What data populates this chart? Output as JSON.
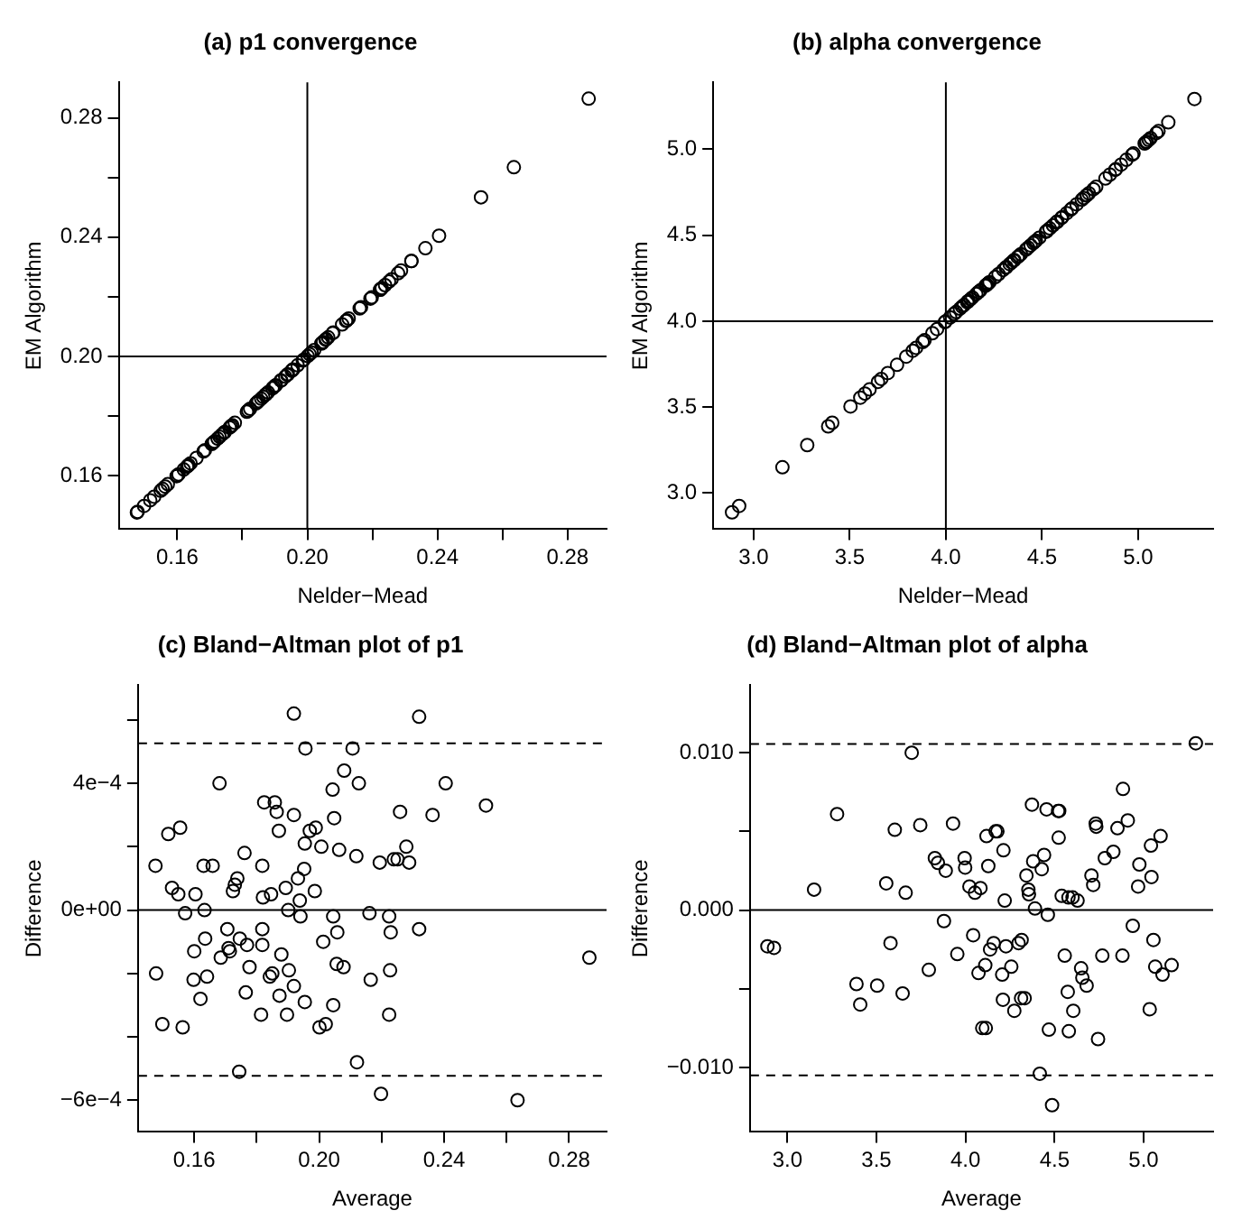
{
  "chart_data": [
    {
      "type": "scatter",
      "title": "(a) p1 convergence",
      "xlabel": "Nelder−Mead",
      "ylabel": "EM Algorithm",
      "color": "#000000",
      "marker": "circle",
      "x": [
        0.1476,
        0.1478,
        0.1498,
        0.1517,
        0.1529,
        0.1549,
        0.1555,
        0.1563,
        0.1571,
        0.16,
        0.1598,
        0.1604,
        0.162,
        0.1633,
        0.1635,
        0.1641,
        0.163,
        0.1659,
        0.1681,
        0.1685,
        0.1706,
        0.171,
        0.1714,
        0.1724,
        0.173,
        0.1738,
        0.1744,
        0.1746,
        0.1761,
        0.1765,
        0.1769,
        0.1777,
        0.1814,
        0.1818,
        0.1824,
        0.1846,
        0.1858,
        0.1864,
        0.1871,
        0.1873,
        0.1879,
        0.1842,
        0.185,
        0.1893,
        0.1897,
        0.1901,
        0.1903,
        0.1919,
        0.1919,
        0.1919,
        0.1932,
        0.1938,
        0.194,
        0.1952,
        0.1954,
        0.1954,
        0.1956,
        0.197,
        0.1989,
        0.1986,
        0.2007,
        0.2001,
        0.2013,
        0.2021,
        0.2043,
        0.2045,
        0.2045,
        0.2048,
        0.2058,
        0.2056,
        0.2064,
        0.2078,
        0.208,
        0.2107,
        0.2119,
        0.2121,
        0.2127,
        0.2161,
        0.2165,
        0.2194,
        0.2198,
        0.2224,
        0.2224,
        0.2227,
        0.2229,
        0.2239,
        0.2251,
        0.2259,
        0.2279,
        0.2288,
        0.232,
        0.232,
        0.2363,
        0.2405,
        0.2534,
        0.2635,
        0.2865
      ],
      "values": [
        0.1476,
        0.1478,
        0.1498,
        0.1517,
        0.1529,
        0.1549,
        0.1555,
        0.1563,
        0.1571,
        0.16,
        0.1598,
        0.1604,
        0.162,
        0.1633,
        0.1635,
        0.1641,
        0.163,
        0.1659,
        0.1681,
        0.1685,
        0.1706,
        0.171,
        0.1714,
        0.1724,
        0.173,
        0.1738,
        0.1744,
        0.1746,
        0.1761,
        0.1765,
        0.1769,
        0.1777,
        0.1814,
        0.1818,
        0.1824,
        0.1846,
        0.1858,
        0.1864,
        0.1871,
        0.1873,
        0.1879,
        0.1842,
        0.185,
        0.1893,
        0.1897,
        0.1901,
        0.1903,
        0.1919,
        0.1919,
        0.1919,
        0.1932,
        0.1938,
        0.194,
        0.1952,
        0.1954,
        0.1954,
        0.1956,
        0.197,
        0.1989,
        0.1986,
        0.2007,
        0.2001,
        0.2013,
        0.2021,
        0.2043,
        0.2045,
        0.2045,
        0.2048,
        0.2058,
        0.2056,
        0.2064,
        0.2078,
        0.208,
        0.2107,
        0.2119,
        0.2121,
        0.2127,
        0.2161,
        0.2165,
        0.2194,
        0.2198,
        0.2224,
        0.2224,
        0.2227,
        0.2229,
        0.2239,
        0.2251,
        0.2259,
        0.2279,
        0.2288,
        0.232,
        0.232,
        0.2363,
        0.2405,
        0.2534,
        0.2635,
        0.2865
      ],
      "xlim": [
        0.142,
        0.292
      ],
      "ylim": [
        0.142,
        0.292
      ],
      "xticks": [
        {
          "value": 0.16,
          "label": "0.16"
        },
        {
          "value": 0.18,
          "label": null
        },
        {
          "value": 0.2,
          "label": "0.20"
        },
        {
          "value": 0.22,
          "label": null
        },
        {
          "value": 0.24,
          "label": "0.24"
        },
        {
          "value": 0.26,
          "label": null
        },
        {
          "value": 0.28,
          "label": "0.28"
        }
      ],
      "yticks": [
        {
          "value": 0.16,
          "label": "0.16"
        },
        {
          "value": 0.18,
          "label": null
        },
        {
          "value": 0.2,
          "label": "0.20"
        },
        {
          "value": 0.22,
          "label": null
        },
        {
          "value": 0.24,
          "label": "0.24"
        },
        {
          "value": 0.26,
          "label": null
        },
        {
          "value": 0.28,
          "label": "0.28"
        }
      ],
      "ref_lines": [
        {
          "axis": "x",
          "value": 0.2
        },
        {
          "axis": "y",
          "value": 0.2
        }
      ]
    },
    {
      "type": "scatter",
      "title": "(b) alpha convergence",
      "xlabel": "Nelder−Mead",
      "ylabel": "EM Algorithm",
      "color": "#000000",
      "marker": "circle",
      "x": [
        2.888,
        2.925,
        3.15,
        3.279,
        3.388,
        3.409,
        3.504,
        3.555,
        3.579,
        3.603,
        3.647,
        3.664,
        3.698,
        3.746,
        3.794,
        3.828,
        3.845,
        3.879,
        3.889,
        3.93,
        3.954,
        3.995,
        3.998,
        4.022,
        4.043,
        4.053,
        4.073,
        4.084,
        4.094,
        4.114,
        4.111,
        4.118,
        4.128,
        4.138,
        4.158,
        4.169,
        4.179,
        4.206,
        4.213,
        4.22,
        4.227,
        4.21,
        4.257,
        4.274,
        4.298,
        4.315,
        4.312,
        4.332,
        4.342,
        4.353,
        4.356,
        4.373,
        4.38,
        4.39,
        4.417,
        4.428,
        4.441,
        4.455,
        4.462,
        4.468,
        4.486,
        4.52,
        4.526,
        4.523,
        4.54,
        4.557,
        4.578,
        4.574,
        4.58,
        4.605,
        4.601,
        4.629,
        4.649,
        4.656,
        4.68,
        4.707,
        4.717,
        4.731,
        4.734,
        4.744,
        4.768,
        4.782,
        4.83,
        4.853,
        4.881,
        4.884,
        4.911,
        4.939,
        4.969,
        4.976,
        5.034,
        5.044,
        5.041,
        5.055,
        5.065,
        5.095,
        5.106,
        5.157,
        5.293
      ],
      "values": [
        2.888,
        2.925,
        3.15,
        3.279,
        3.388,
        3.409,
        3.504,
        3.555,
        3.579,
        3.603,
        3.647,
        3.664,
        3.698,
        3.746,
        3.794,
        3.828,
        3.845,
        3.879,
        3.889,
        3.93,
        3.954,
        3.995,
        3.998,
        4.022,
        4.043,
        4.053,
        4.073,
        4.084,
        4.094,
        4.114,
        4.111,
        4.118,
        4.128,
        4.138,
        4.158,
        4.169,
        4.179,
        4.206,
        4.213,
        4.22,
        4.227,
        4.21,
        4.257,
        4.274,
        4.298,
        4.315,
        4.312,
        4.332,
        4.342,
        4.353,
        4.356,
        4.373,
        4.38,
        4.39,
        4.417,
        4.428,
        4.441,
        4.455,
        4.462,
        4.468,
        4.486,
        4.52,
        4.526,
        4.523,
        4.54,
        4.557,
        4.578,
        4.574,
        4.58,
        4.605,
        4.601,
        4.629,
        4.649,
        4.656,
        4.68,
        4.707,
        4.717,
        4.731,
        4.734,
        4.744,
        4.768,
        4.782,
        4.83,
        4.853,
        4.881,
        4.884,
        4.911,
        4.939,
        4.969,
        4.976,
        5.034,
        5.044,
        5.041,
        5.055,
        5.065,
        5.095,
        5.106,
        5.157,
        5.293
      ],
      "xlim": [
        2.79,
        5.39
      ],
      "ylim": [
        2.79,
        5.39
      ],
      "xticks": [
        {
          "value": 3,
          "label": "3.0"
        },
        {
          "value": 3.5,
          "label": "3.5"
        },
        {
          "value": 4,
          "label": "4.0"
        },
        {
          "value": 4.5,
          "label": "4.5"
        },
        {
          "value": 5,
          "label": "5.0"
        }
      ],
      "yticks": [
        {
          "value": 3,
          "label": "3.0"
        },
        {
          "value": 3.5,
          "label": "3.5"
        },
        {
          "value": 4,
          "label": "4.0"
        },
        {
          "value": 4.5,
          "label": "4.5"
        },
        {
          "value": 5,
          "label": "5.0"
        }
      ],
      "ref_lines": [
        {
          "axis": "x",
          "value": 4
        },
        {
          "axis": "y",
          "value": 4
        }
      ]
    },
    {
      "type": "scatter",
      "title": "(c) Bland−Altman plot of p1",
      "xlabel": "Average",
      "ylabel": "Difference",
      "color": "#000000",
      "marker": "circle",
      "x": [
        0.1476,
        0.1478,
        0.1498,
        0.1517,
        0.1529,
        0.1549,
        0.1555,
        0.1563,
        0.1571,
        0.16,
        0.1598,
        0.1604,
        0.162,
        0.1633,
        0.1635,
        0.1641,
        0.163,
        0.1659,
        0.1681,
        0.1685,
        0.1706,
        0.171,
        0.1714,
        0.1724,
        0.173,
        0.1738,
        0.1744,
        0.1746,
        0.1761,
        0.1765,
        0.1769,
        0.1777,
        0.1814,
        0.1818,
        0.1818,
        0.1818,
        0.182,
        0.1824,
        0.1846,
        0.1858,
        0.1864,
        0.1871,
        0.1873,
        0.1879,
        0.1842,
        0.185,
        0.1893,
        0.1897,
        0.1901,
        0.1903,
        0.1919,
        0.1919,
        0.1919,
        0.1932,
        0.1938,
        0.194,
        0.1952,
        0.1954,
        0.1954,
        0.1956,
        0.197,
        0.1989,
        0.1986,
        0.2007,
        0.2001,
        0.2013,
        0.2021,
        0.2043,
        0.2045,
        0.2045,
        0.2048,
        0.2058,
        0.2056,
        0.2064,
        0.2078,
        0.208,
        0.2107,
        0.2119,
        0.2121,
        0.2127,
        0.2161,
        0.2165,
        0.2194,
        0.2198,
        0.2224,
        0.2224,
        0.2227,
        0.2229,
        0.2239,
        0.2251,
        0.2259,
        0.2279,
        0.2288,
        0.232,
        0.232,
        0.2363,
        0.2405,
        0.2534,
        0.2635,
        0.2865
      ],
      "values": [
        0.00014,
        -0.0002,
        -0.00036,
        0.00024,
        7e-05,
        5e-05,
        0.00026,
        -0.00037,
        -1e-05,
        -0.00013,
        -0.00022,
        5e-05,
        -0.00028,
        0,
        -9e-05,
        -0.00021,
        0.00014,
        0.00014,
        0.0004,
        -0.00015,
        -6e-05,
        -0.00012,
        -0.00013,
        6e-05,
        8e-05,
        0.0001,
        -0.00051,
        -9e-05,
        0.00018,
        -0.00026,
        -0.00011,
        -0.00018,
        -0.00033,
        -0.00011,
        0.00014,
        -6e-05,
        4e-05,
        0.00034,
        5e-05,
        0.00034,
        0.00031,
        0.00025,
        -0.00027,
        -0.00014,
        -0.00021,
        -0.0002,
        7e-05,
        -0.00033,
        0,
        -0.00019,
        0.0003,
        0.00062,
        -0.00024,
        0.0001,
        3e-05,
        -2e-05,
        0.00013,
        0.00021,
        -0.00029,
        0.00051,
        0.00025,
        0.00026,
        6e-05,
        0.0002,
        -0.00037,
        -0.0001,
        -0.00036,
        0.00038,
        -2e-05,
        -0.0003,
        0.00029,
        -7e-05,
        -0.00017,
        0.00019,
        -0.00018,
        0.00044,
        0.00051,
        0.00017,
        -0.00048,
        0.0004,
        -1e-05,
        -0.00022,
        0.00015,
        -0.00058,
        -0.00033,
        -2e-05,
        -0.00019,
        -7e-05,
        0.00016,
        0.00016,
        0.00031,
        0.0002,
        0.00015,
        0.00061,
        -6e-05,
        0.0003,
        0.0004,
        0.00033,
        -0.0006,
        -0.00015
      ],
      "xlim": [
        0.142,
        0.292
      ],
      "ylim": [
        -0.0007,
        0.00071
      ],
      "xticks": [
        {
          "value": 0.16,
          "label": "0.16"
        },
        {
          "value": 0.18,
          "label": null
        },
        {
          "value": 0.2,
          "label": "0.20"
        },
        {
          "value": 0.22,
          "label": null
        },
        {
          "value": 0.24,
          "label": "0.24"
        },
        {
          "value": 0.26,
          "label": null
        },
        {
          "value": 0.28,
          "label": "0.28"
        }
      ],
      "yticks": [
        {
          "value": -0.0006,
          "label": "−6e−4"
        },
        {
          "value": -0.0004,
          "label": null
        },
        {
          "value": -0.0002,
          "label": null
        },
        {
          "value": 0,
          "label": "0e+00"
        },
        {
          "value": 0.0002,
          "label": null
        },
        {
          "value": 0.0004,
          "label": "4e−4"
        },
        {
          "value": 0.0006,
          "label": null
        }
      ],
      "ref_lines": [
        {
          "axis": "y",
          "value": 0
        },
        {
          "axis": "y",
          "value": 0.000526,
          "line_style": "dashed"
        },
        {
          "axis": "y",
          "value": -0.000523,
          "line_style": "dashed"
        }
      ]
    },
    {
      "type": "scatter",
      "title": "(d) Bland−Altman plot of alpha",
      "xlabel": "Average",
      "ylabel": "Difference",
      "color": "#000000",
      "marker": "circle",
      "x": [
        2.888,
        2.925,
        3.15,
        3.279,
        3.388,
        3.409,
        3.504,
        3.555,
        3.579,
        3.603,
        3.647,
        3.664,
        3.698,
        3.746,
        3.794,
        3.828,
        3.845,
        3.879,
        3.889,
        3.93,
        3.954,
        3.995,
        3.998,
        4.022,
        4.043,
        4.053,
        4.073,
        4.084,
        4.094,
        4.114,
        4.111,
        4.118,
        4.128,
        4.138,
        4.158,
        4.169,
        4.179,
        4.206,
        4.213,
        4.22,
        4.227,
        4.21,
        4.257,
        4.274,
        4.298,
        4.315,
        4.312,
        4.332,
        4.342,
        4.353,
        4.356,
        4.373,
        4.38,
        4.39,
        4.417,
        4.428,
        4.441,
        4.455,
        4.462,
        4.468,
        4.486,
        4.52,
        4.526,
        4.523,
        4.54,
        4.557,
        4.578,
        4.574,
        4.58,
        4.605,
        4.601,
        4.629,
        4.649,
        4.656,
        4.68,
        4.707,
        4.717,
        4.731,
        4.734,
        4.744,
        4.768,
        4.782,
        4.83,
        4.853,
        4.881,
        4.884,
        4.911,
        4.939,
        4.969,
        4.976,
        5.034,
        5.044,
        5.041,
        5.055,
        5.065,
        5.095,
        5.106,
        5.157,
        5.293
      ],
      "values": [
        -0.0023,
        -0.0024,
        0.0013,
        0.0061,
        -0.0047,
        -0.006,
        -0.0048,
        0.0017,
        -0.0021,
        0.0051,
        -0.0053,
        0.0011,
        0.01,
        0.0054,
        -0.0038,
        0.0033,
        0.003,
        -0.0007,
        0.0025,
        0.0055,
        -0.0028,
        0.0033,
        0.0027,
        0.0015,
        -0.0016,
        0.0011,
        -0.004,
        0.0014,
        -0.0075,
        -0.0075,
        -0.0035,
        0.0047,
        0.0028,
        -0.0025,
        -0.0021,
        0.005,
        0.005,
        -0.0041,
        0.0038,
        0.0006,
        -0.0023,
        -0.0057,
        -0.0036,
        -0.0064,
        -0.0021,
        -0.0019,
        -0.0056,
        -0.0056,
        0.0022,
        0.0013,
        0.001,
        0.0067,
        0.0031,
        0.0001,
        -0.0104,
        0.0026,
        0.0035,
        0.0064,
        -0.0003,
        -0.0076,
        -0.0124,
        0.0063,
        0.0063,
        0.0046,
        0.0009,
        -0.0029,
        0.0008,
        -0.0052,
        -0.0077,
        -0.0064,
        0.0008,
        0.0006,
        -0.0037,
        -0.0043,
        -0.0048,
        0.0022,
        0.0016,
        0.0055,
        0.0053,
        -0.0082,
        -0.0029,
        0.0033,
        0.0037,
        0.0052,
        -0.0029,
        0.0077,
        0.0057,
        -0.001,
        0.0015,
        0.0029,
        -0.0063,
        0.0021,
        0.0041,
        -0.0019,
        -0.0036,
        0.0047,
        -0.0041,
        -0.0035,
        0.0106
      ],
      "xlim": [
        2.79,
        5.39
      ],
      "ylim": [
        -0.0141,
        0.0143
      ],
      "xticks": [
        {
          "value": 3,
          "label": "3.0"
        },
        {
          "value": 3.5,
          "label": "3.5"
        },
        {
          "value": 4,
          "label": "4.0"
        },
        {
          "value": 4.5,
          "label": "4.5"
        },
        {
          "value": 5,
          "label": "5.0"
        }
      ],
      "yticks": [
        {
          "value": -0.01,
          "label": "−0.010"
        },
        {
          "value": -0.005,
          "label": null
        },
        {
          "value": 0,
          "label": "0.000"
        },
        {
          "value": 0.005,
          "label": null
        },
        {
          "value": 0.01,
          "label": "0.010"
        }
      ],
      "ref_lines": [
        {
          "axis": "y",
          "value": 0
        },
        {
          "axis": "y",
          "value": 0.01056,
          "line_style": "dashed"
        },
        {
          "axis": "y",
          "value": -0.01051,
          "line_style": "dashed"
        }
      ]
    }
  ]
}
